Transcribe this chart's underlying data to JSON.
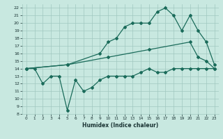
{
  "xlabel": "Humidex (Indice chaleur)",
  "background_color": "#c8e8e0",
  "line_color": "#1a6b5a",
  "grid_color": "#a0c8c0",
  "xlim": [
    -0.5,
    23.5
  ],
  "ylim": [
    8,
    22.5
  ],
  "xticks": [
    0,
    1,
    2,
    3,
    4,
    5,
    6,
    7,
    8,
    9,
    10,
    11,
    12,
    13,
    14,
    15,
    16,
    17,
    18,
    19,
    20,
    21,
    22,
    23
  ],
  "yticks": [
    8,
    9,
    10,
    11,
    12,
    13,
    14,
    15,
    16,
    17,
    18,
    19,
    20,
    21,
    22
  ],
  "line1_x": [
    0,
    1,
    2,
    3,
    4,
    5,
    6,
    7,
    8,
    9,
    10,
    11,
    12,
    13,
    14,
    15,
    16,
    17,
    18,
    19,
    20,
    21,
    22,
    23
  ],
  "line1_y": [
    14,
    14,
    12,
    13,
    13,
    8.5,
    12.5,
    11,
    11.5,
    12.5,
    13,
    13,
    13,
    13,
    13.5,
    14,
    13.5,
    13.5,
    14,
    14,
    14,
    14,
    14,
    14
  ],
  "line2_x": [
    0,
    5,
    9,
    10,
    11,
    12,
    13,
    14,
    15,
    16,
    17,
    18,
    19,
    20,
    21,
    22,
    23
  ],
  "line2_y": [
    14,
    14.5,
    16,
    17.5,
    18,
    19.5,
    20,
    20,
    20,
    21.5,
    22,
    21,
    19,
    21,
    19,
    17.5,
    14.5
  ],
  "line3_x": [
    0,
    5,
    10,
    15,
    20,
    21,
    22,
    23
  ],
  "line3_y": [
    14,
    14.5,
    15.5,
    16.5,
    17.5,
    15.5,
    15,
    14
  ],
  "marker": "D",
  "markersize": 2.0,
  "linewidth": 0.9
}
